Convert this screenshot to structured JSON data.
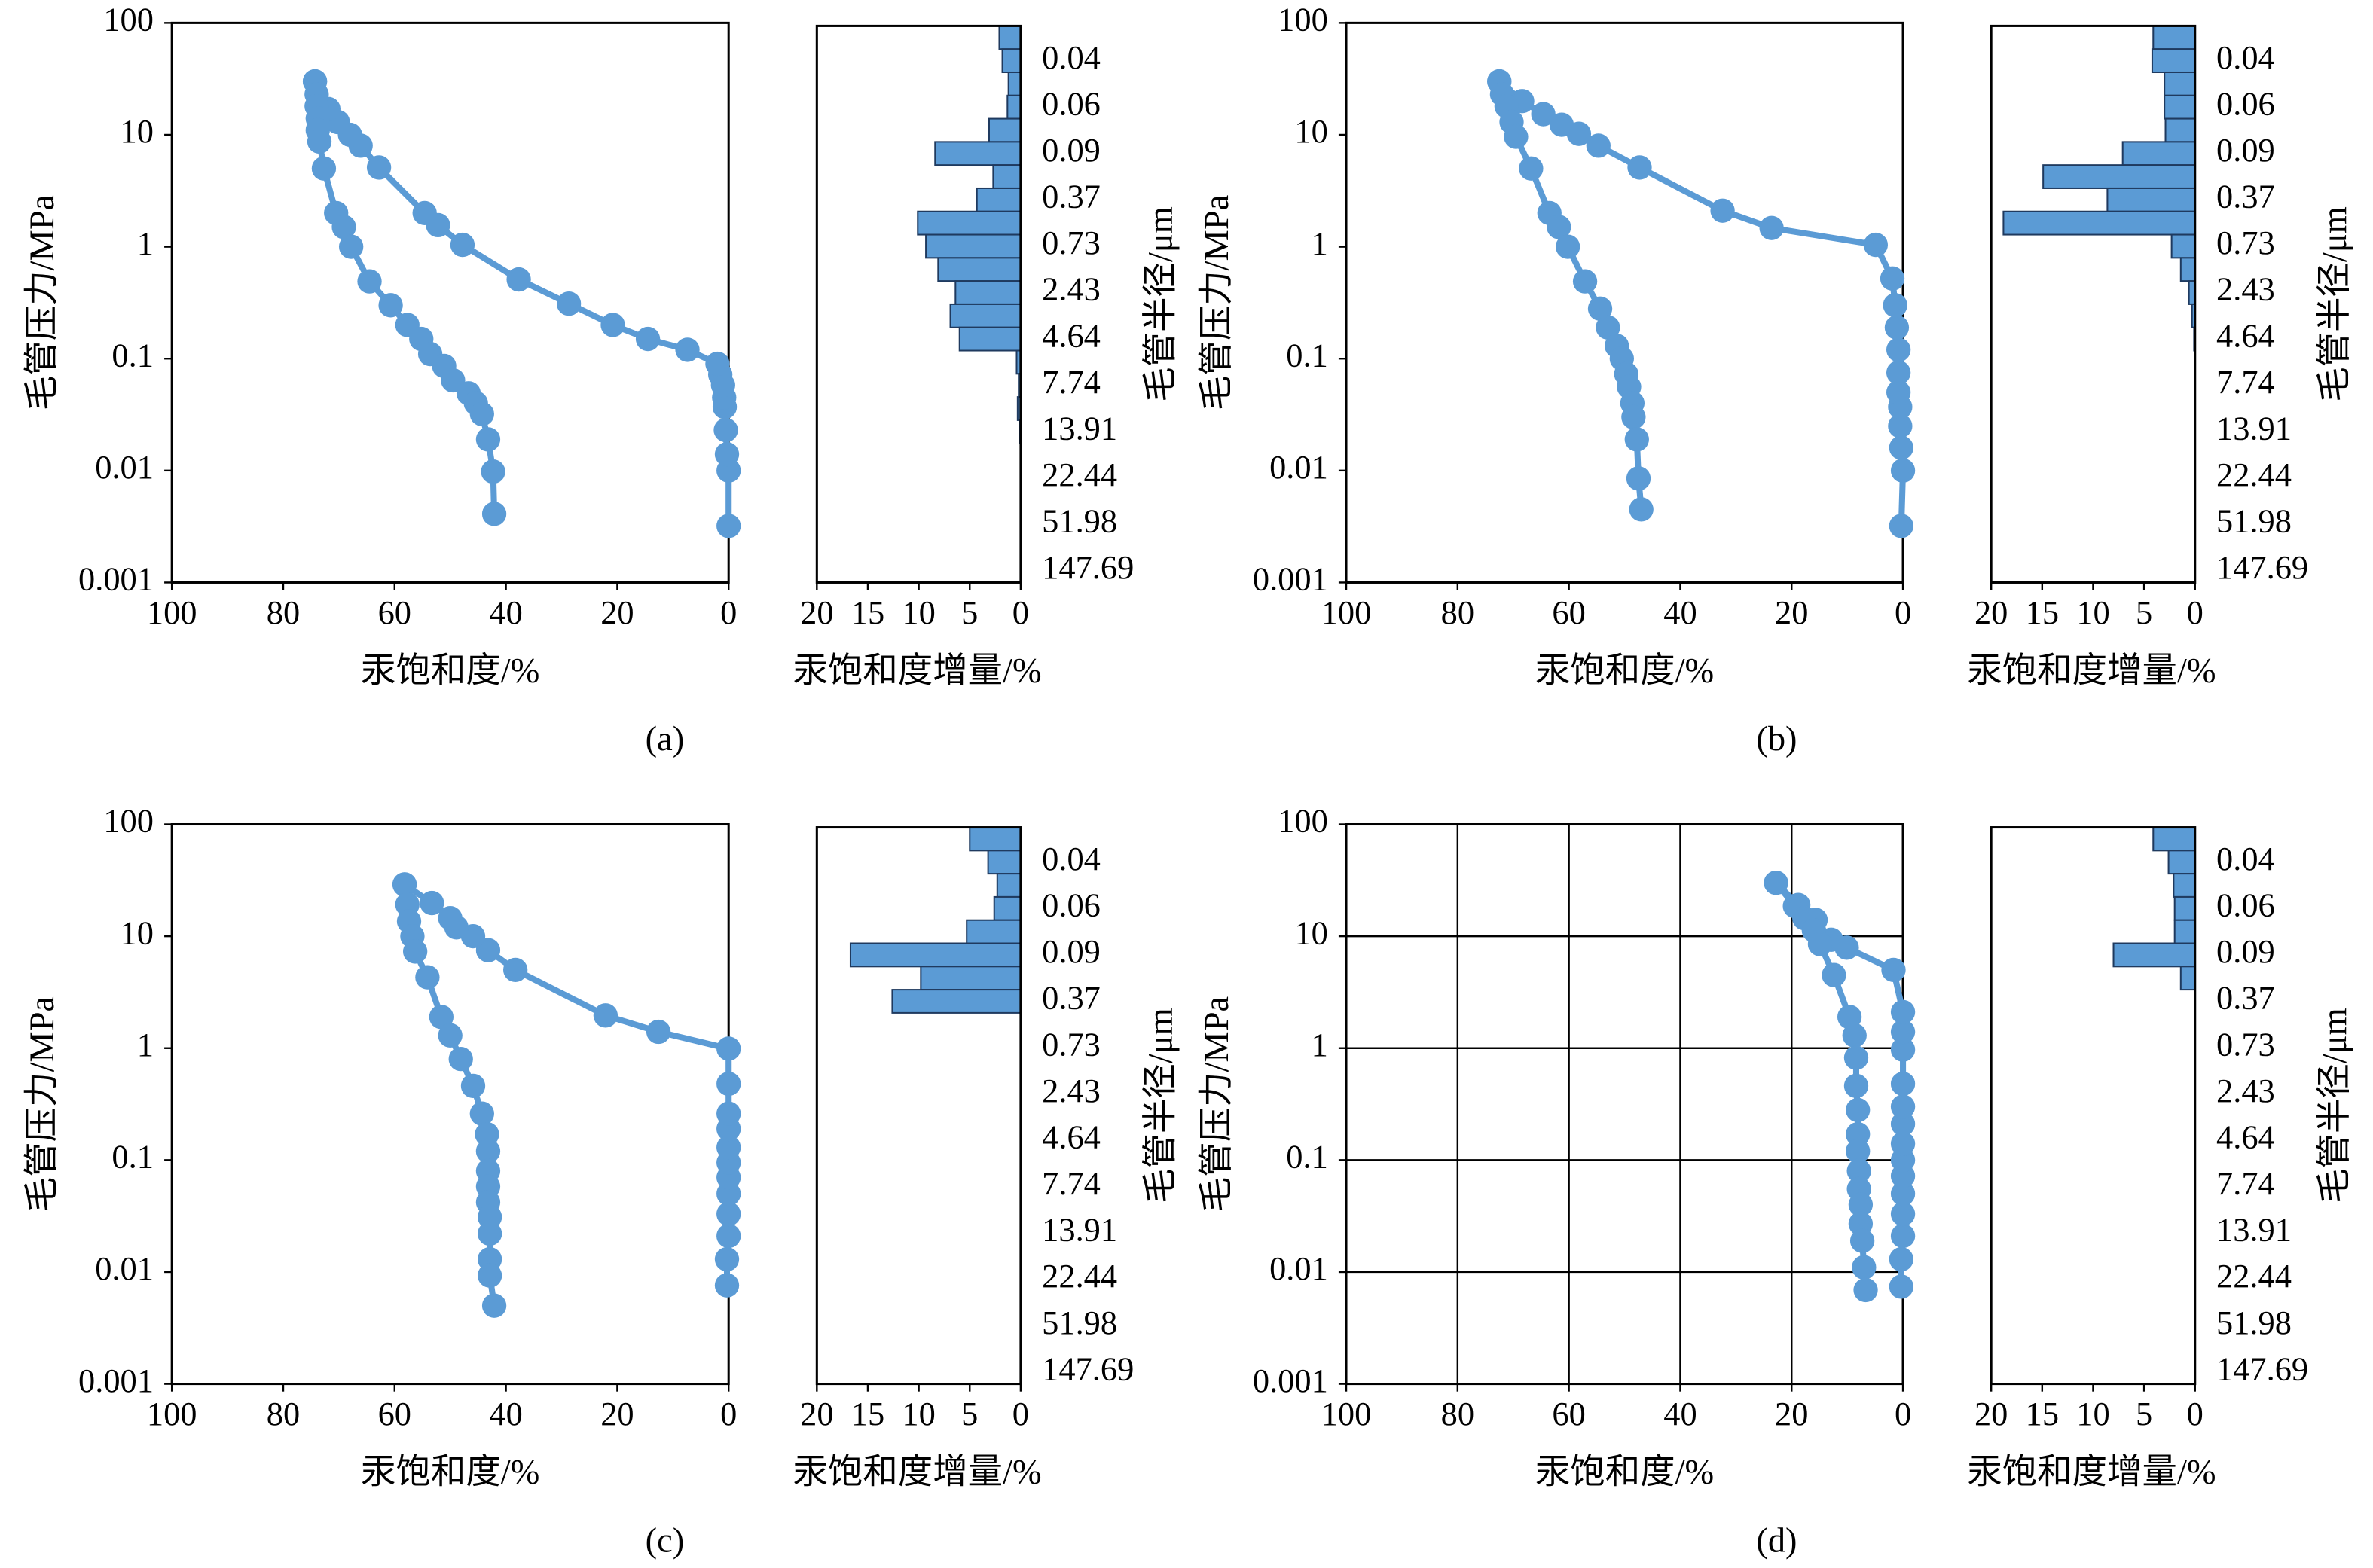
{
  "chart_data": [
    {
      "type": "line",
      "caption": "(a)",
      "xlabel": "汞饱和度/%",
      "ylabel": "毛管压力/MPa",
      "xlim": [
        100,
        0
      ],
      "xticks": [
        100,
        80,
        60,
        40,
        20,
        0
      ],
      "ylim": [
        0.001,
        100
      ],
      "yticks": [
        0.001,
        0.01,
        0.1,
        1,
        10,
        100
      ],
      "log_y": true,
      "grid": false,
      "series": [
        {
          "color": "#5b9bd5",
          "x": [
            0,
            0,
            0.3,
            0.5,
            0.7,
            0.8,
            1,
            1.5,
            2,
            7.4,
            14.5,
            20.8,
            28.7,
            37.7,
            47.8,
            52.2,
            54.6,
            62.8,
            66.1,
            68,
            70.2,
            71.9,
            74.3
          ],
          "values": [
            0.0032,
            0.01,
            0.014,
            0.023,
            0.037,
            0.045,
            0.058,
            0.072,
            0.09,
            0.12,
            0.15,
            0.2,
            0.31,
            0.51,
            1.04,
            1.56,
            2.0,
            5.1,
            8,
            10,
            13,
            17,
            30
          ]
        },
        {
          "color": "#5b9bd5",
          "x": [
            74.3,
            74,
            74,
            73.8,
            73.8,
            73.5,
            72.7,
            70.5,
            69.1,
            67.8,
            64.5,
            60.7,
            57.7,
            55.2,
            53.6,
            51.1,
            49.5,
            46.7,
            45.4,
            44.3,
            43.2,
            42.3,
            42.1
          ],
          "values": [
            30,
            23,
            18,
            14,
            11,
            8.7,
            5,
            2,
            1.5,
            1.0,
            0.49,
            0.3,
            0.2,
            0.15,
            0.11,
            0.086,
            0.064,
            0.049,
            0.04,
            0.032,
            0.019,
            0.0098,
            0.0041
          ]
        }
      ]
    },
    {
      "type": "bar",
      "xlabel": "汞饱和度增量/%",
      "ylabel": "毛管半径/μm",
      "xlim": [
        20,
        0
      ],
      "xticks": [
        20,
        15,
        10,
        5,
        0
      ],
      "color": "#5b9bd5",
      "categories": [
        null,
        "0.04",
        null,
        "0.06",
        null,
        "0.09",
        null,
        "0.37",
        null,
        "0.73",
        null,
        "2.43",
        null,
        "4.64",
        null,
        "7.74",
        null,
        "13.91",
        null,
        "22.44",
        null,
        "51.98",
        null,
        "147.69"
      ],
      "values": [
        2.1,
        1.8,
        1.2,
        1.3,
        3.1,
        8.4,
        2.7,
        4.3,
        10.1,
        9.3,
        8.1,
        6.4,
        6.9,
        6.0,
        0.4,
        0.2,
        0.3,
        0.1,
        0,
        0,
        0,
        0,
        0,
        0
      ]
    },
    {
      "type": "line",
      "caption": "(b)",
      "xlabel": "汞饱和度/%",
      "ylabel": "毛管压力/MPa",
      "xlim": [
        100,
        0
      ],
      "xticks": [
        100,
        80,
        60,
        40,
        20,
        0
      ],
      "ylim": [
        0.001,
        100
      ],
      "yticks": [
        0.001,
        0.01,
        0.1,
        1,
        10,
        100
      ],
      "log_y": true,
      "grid": false,
      "series": [
        {
          "color": "#5b9bd5",
          "x": [
            0.3,
            0,
            0.3,
            0.5,
            0.5,
            0.8,
            0.8,
            0.8,
            1.1,
            1.4,
            1.9,
            4.9,
            23.6,
            32.4,
            47.3,
            54.7,
            58.2,
            61.3,
            64.6,
            68.4,
            72.5
          ],
          "values": [
            0.0032,
            0.01,
            0.016,
            0.025,
            0.037,
            0.05,
            0.075,
            0.12,
            0.19,
            0.3,
            0.52,
            1.04,
            1.47,
            2.1,
            5.1,
            8,
            10.2,
            12.3,
            15.3,
            20,
            30
          ]
        },
        {
          "color": "#5b9bd5",
          "x": [
            72.5,
            72,
            71.2,
            70.3,
            69.5,
            66.8,
            63.5,
            61.8,
            60.2,
            57.1,
            54.4,
            53,
            51.4,
            50.5,
            49.7,
            49.2,
            48.6,
            48.4,
            47.8,
            47.5,
            47
          ],
          "values": [
            30,
            23,
            18,
            13,
            9.6,
            5,
            2,
            1.5,
            1.0,
            0.49,
            0.28,
            0.19,
            0.13,
            0.1,
            0.073,
            0.056,
            0.04,
            0.03,
            0.019,
            0.0085,
            0.0045
          ]
        }
      ]
    },
    {
      "type": "bar",
      "xlabel": "汞饱和度增量/%",
      "ylabel": "毛管半径/μm",
      "xlim": [
        20,
        0
      ],
      "xticks": [
        20,
        15,
        10,
        5,
        0
      ],
      "color": "#5b9bd5",
      "categories": [
        null,
        "0.04",
        null,
        "0.06",
        null,
        "0.09",
        null,
        "0.37",
        null,
        "0.73",
        null,
        "2.43",
        null,
        "4.64",
        null,
        "7.74",
        null,
        "13.91",
        null,
        "22.44",
        null,
        "51.98",
        null,
        "147.69"
      ],
      "values": [
        4.1,
        4.2,
        3.0,
        3.0,
        2.9,
        7.1,
        14.9,
        8.6,
        18.8,
        2.3,
        1.4,
        0.6,
        0.3,
        0.1,
        0,
        0,
        0,
        0,
        0,
        0,
        0,
        0,
        0,
        0
      ]
    },
    {
      "type": "line",
      "caption": "(c)",
      "xlabel": "汞饱和度/%",
      "ylabel": "毛管压力/MPa",
      "xlim": [
        100,
        0
      ],
      "xticks": [
        100,
        80,
        60,
        40,
        20,
        0
      ],
      "ylim": [
        0.001,
        100
      ],
      "yticks": [
        0.001,
        0.01,
        0.1,
        1,
        10,
        100
      ],
      "log_y": true,
      "grid": false,
      "series": [
        {
          "color": "#5b9bd5",
          "x": [
            0.3,
            0.3,
            0,
            0,
            0,
            0,
            0,
            0,
            0,
            0,
            0,
            0,
            12.6,
            22.1,
            38.3,
            43.2,
            45.9,
            48.9,
            50,
            53.3,
            58.2
          ],
          "values": [
            0.0076,
            0.013,
            0.021,
            0.033,
            0.05,
            0.07,
            0.095,
            0.13,
            0.19,
            0.26,
            0.48,
            0.99,
            1.4,
            1.96,
            5.0,
            7.5,
            10,
            12,
            14.5,
            19.8,
            29
          ]
        },
        {
          "color": "#5b9bd5",
          "x": [
            58.2,
            57.7,
            57.4,
            56.8,
            56.3,
            54.1,
            51.6,
            50,
            48.1,
            45.9,
            44.3,
            43.4,
            43.2,
            43.2,
            43.2,
            43.2,
            42.9,
            42.9,
            42.9,
            42.9,
            42.1
          ],
          "values": [
            29,
            19.2,
            13.6,
            10,
            7.3,
            4.3,
            1.9,
            1.3,
            0.8,
            0.46,
            0.26,
            0.17,
            0.12,
            0.08,
            0.058,
            0.042,
            0.031,
            0.022,
            0.013,
            0.0093,
            0.005
          ]
        }
      ]
    },
    {
      "type": "bar",
      "xlabel": "汞饱和度增量/%",
      "ylabel": "毛管半径/μm",
      "xlim": [
        20,
        0
      ],
      "xticks": [
        20,
        15,
        10,
        5,
        0
      ],
      "color": "#5b9bd5",
      "categories": [
        null,
        "0.04",
        null,
        "0.06",
        null,
        "0.09",
        null,
        "0.37",
        null,
        "0.73",
        null,
        "2.43",
        null,
        "4.64",
        null,
        "7.74",
        null,
        "13.91",
        null,
        "22.44",
        null,
        "51.98",
        null,
        "147.69"
      ],
      "values": [
        5.0,
        3.2,
        2.3,
        2.6,
        5.3,
        16.7,
        9.8,
        12.6,
        0,
        0,
        0,
        0,
        0,
        0,
        0,
        0,
        0,
        0,
        0,
        0,
        0,
        0,
        0,
        0
      ]
    },
    {
      "type": "line",
      "caption": "(d)",
      "xlabel": "汞饱和度/%",
      "ylabel": "毛管压力/MPa",
      "xlim": [
        100,
        0
      ],
      "xticks": [
        100,
        80,
        60,
        40,
        20,
        0
      ],
      "ylim": [
        0.001,
        100
      ],
      "yticks": [
        0.001,
        0.01,
        0.1,
        1,
        10,
        100
      ],
      "log_y": true,
      "grid": true,
      "series": [
        {
          "color": "#5b9bd5",
          "x": [
            0.3,
            0.3,
            0,
            0,
            0,
            0,
            0,
            0,
            0,
            0,
            0,
            0,
            0,
            0,
            1.7,
            10.1,
            12.9,
            15.7,
            18.8,
            22.8
          ],
          "values": [
            0.0074,
            0.013,
            0.021,
            0.033,
            0.05,
            0.072,
            0.1,
            0.14,
            0.21,
            0.3,
            0.48,
            0.97,
            1.4,
            2.1,
            5.0,
            7.9,
            9.3,
            14,
            19,
            30
          ]
        },
        {
          "color": "#5b9bd5",
          "x": [
            22.8,
            19.4,
            17.7,
            16,
            14.9,
            12.4,
            9.6,
            8.7,
            8.4,
            8.4,
            8.1,
            8.1,
            8.1,
            7.9,
            7.9,
            7.6,
            7.6,
            7.3,
            7.0,
            6.7
          ],
          "values": [
            30,
            18.6,
            14.5,
            11.3,
            8.5,
            4.5,
            1.9,
            1.3,
            0.82,
            0.46,
            0.28,
            0.17,
            0.12,
            0.08,
            0.055,
            0.04,
            0.027,
            0.019,
            0.011,
            0.0069
          ]
        }
      ]
    },
    {
      "type": "bar",
      "xlabel": "汞饱和度增量/%",
      "ylabel": "毛管半径/μm",
      "xlim": [
        20,
        0
      ],
      "xticks": [
        20,
        15,
        10,
        5,
        0
      ],
      "color": "#5b9bd5",
      "categories": [
        null,
        "0.04",
        null,
        "0.06",
        null,
        "0.09",
        null,
        "0.37",
        null,
        "0.73",
        null,
        "2.43",
        null,
        "4.64",
        null,
        "7.74",
        null,
        "13.91",
        null,
        "22.44",
        null,
        "51.98",
        null,
        "147.69"
      ],
      "values": [
        4.1,
        2.6,
        2.1,
        2.0,
        2.0,
        8.0,
        1.4,
        0,
        0,
        0,
        0,
        0,
        0,
        0,
        0,
        0,
        0,
        0,
        0,
        0,
        0,
        0,
        0,
        0
      ]
    }
  ]
}
